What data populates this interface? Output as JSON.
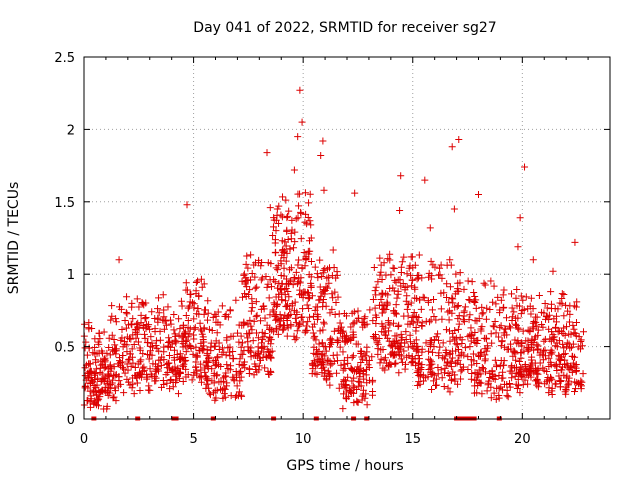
{
  "chart_data": {
    "type": "scatter",
    "title": "Day 041 of 2022, SRMTID for receiver sg27",
    "xlabel": "GPS time / hours",
    "ylabel": "SRMTID / TECUs",
    "xlim": [
      0,
      24
    ],
    "ylim": [
      0,
      2.5
    ],
    "xticks": [
      0,
      5,
      10,
      15,
      20
    ],
    "xtick_labels": [
      "0",
      "5",
      "10",
      "15",
      "20"
    ],
    "yticks": [
      0,
      0.5,
      1,
      1.5,
      2,
      2.5
    ],
    "ytick_labels": [
      "0",
      "0.5",
      "1",
      "1.5",
      "2",
      "2.5"
    ],
    "grid": true,
    "marker": "+",
    "color": "#dd0000",
    "highlight_points": [
      {
        "x": 9.85,
        "y": 2.27
      },
      {
        "x": 9.95,
        "y": 2.05
      },
      {
        "x": 9.75,
        "y": 1.95
      },
      {
        "x": 10.9,
        "y": 1.92
      },
      {
        "x": 17.1,
        "y": 1.93
      },
      {
        "x": 16.8,
        "y": 1.88
      },
      {
        "x": 8.35,
        "y": 1.84
      },
      {
        "x": 10.8,
        "y": 1.82
      },
      {
        "x": 20.1,
        "y": 1.74
      },
      {
        "x": 9.6,
        "y": 1.72
      },
      {
        "x": 14.45,
        "y": 1.68
      },
      {
        "x": 15.55,
        "y": 1.65
      },
      {
        "x": 12.35,
        "y": 1.56
      },
      {
        "x": 18.0,
        "y": 1.55
      },
      {
        "x": 10.95,
        "y": 1.58
      },
      {
        "x": 4.7,
        "y": 1.48
      },
      {
        "x": 14.4,
        "y": 1.44
      },
      {
        "x": 19.9,
        "y": 1.39
      },
      {
        "x": 9.9,
        "y": 1.42
      },
      {
        "x": 8.5,
        "y": 1.46
      },
      {
        "x": 22.4,
        "y": 1.22
      },
      {
        "x": 19.8,
        "y": 1.19
      },
      {
        "x": 15.8,
        "y": 1.32
      },
      {
        "x": 16.9,
        "y": 1.45
      },
      {
        "x": 1.6,
        "y": 1.1
      },
      {
        "x": 20.5,
        "y": 1.1
      },
      {
        "x": 21.4,
        "y": 1.02
      }
    ],
    "generated_clusters": [
      {
        "x0": 0.0,
        "x1": 1.2,
        "base": 0.3,
        "spread": 0.22,
        "n": 130
      },
      {
        "x0": 1.2,
        "x1": 2.5,
        "base": 0.42,
        "spread": 0.3,
        "n": 110
      },
      {
        "x0": 2.5,
        "x1": 4.5,
        "base": 0.45,
        "spread": 0.28,
        "n": 170
      },
      {
        "x0": 4.5,
        "x1": 5.5,
        "base": 0.55,
        "spread": 0.35,
        "n": 100
      },
      {
        "x0": 5.5,
        "x1": 7.2,
        "base": 0.4,
        "spread": 0.3,
        "n": 140
      },
      {
        "x0": 7.2,
        "x1": 8.6,
        "base": 0.62,
        "spread": 0.35,
        "n": 140
      },
      {
        "x0": 8.6,
        "x1": 10.4,
        "base": 0.95,
        "spread": 0.45,
        "n": 210
      },
      {
        "x0": 10.4,
        "x1": 11.6,
        "base": 0.6,
        "spread": 0.4,
        "n": 130
      },
      {
        "x0": 11.6,
        "x1": 13.2,
        "base": 0.35,
        "spread": 0.3,
        "n": 140
      },
      {
        "x0": 13.2,
        "x1": 15.2,
        "base": 0.65,
        "spread": 0.35,
        "n": 200
      },
      {
        "x0": 15.2,
        "x1": 16.8,
        "base": 0.55,
        "spread": 0.4,
        "n": 140
      },
      {
        "x0": 16.8,
        "x1": 17.8,
        "base": 0.55,
        "spread": 0.35,
        "n": 80
      },
      {
        "x0": 17.8,
        "x1": 19.5,
        "base": 0.45,
        "spread": 0.35,
        "n": 140
      },
      {
        "x0": 19.5,
        "x1": 21.5,
        "base": 0.45,
        "spread": 0.3,
        "n": 200
      },
      {
        "x0": 21.5,
        "x1": 22.8,
        "base": 0.45,
        "spread": 0.3,
        "n": 120
      }
    ],
    "zero_markers_x": [
      0.45,
      2.45,
      4.1,
      4.2,
      5.9,
      8.65,
      10.6,
      12.3,
      12.9,
      17.0,
      17.2,
      17.4,
      17.6,
      17.8,
      18.95
    ]
  }
}
